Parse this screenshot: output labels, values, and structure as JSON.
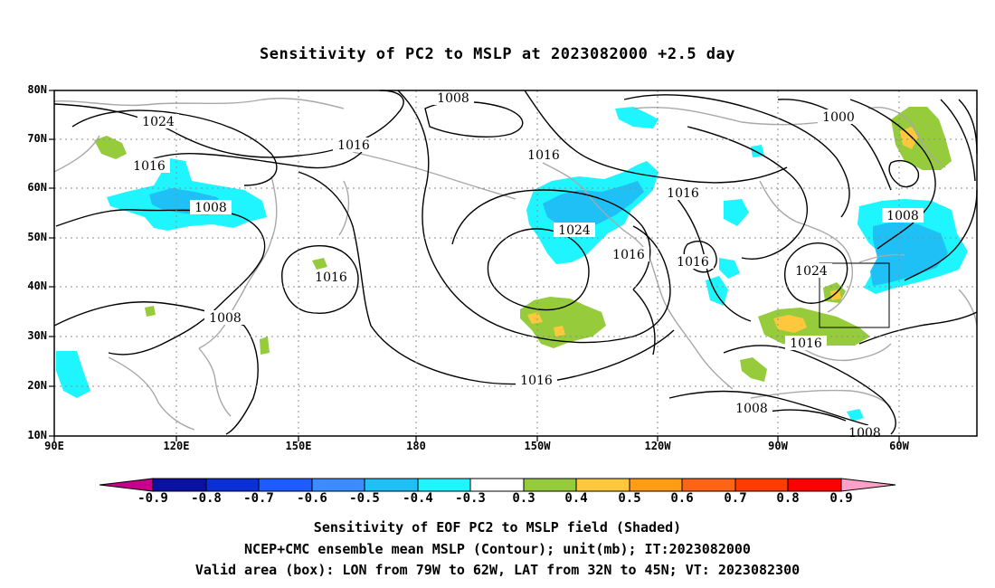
{
  "title": "Sensitivity of PC2 to MSLP at 2023082000 +2.5 day",
  "lat_labels": [
    "80N",
    "70N",
    "60N",
    "50N",
    "40N",
    "30N",
    "20N",
    "10N"
  ],
  "lon_labels": [
    "90E",
    "120E",
    "150E",
    "180",
    "150W",
    "120W",
    "90W",
    "60W"
  ],
  "contour_labels": [
    "1008",
    "1024",
    "1016",
    "1016",
    "1008",
    "1016",
    "1024",
    "1016",
    "1016",
    "1000",
    "1016",
    "1008",
    "1016",
    "1008",
    "1024",
    "1016",
    "1016",
    "1008",
    "1008"
  ],
  "colorbar": {
    "ticks": [
      "-0.9",
      "-0.8",
      "-0.7",
      "-0.6",
      "-0.5",
      "-0.4",
      "-0.3",
      "0.3",
      "0.4",
      "0.5",
      "0.6",
      "0.7",
      "0.8",
      "0.9"
    ],
    "colors": [
      "#c8008c",
      "#0a10a0",
      "#0a2fd6",
      "#1e5cff",
      "#3d8cff",
      "#1ec0f5",
      "#1ef5ff",
      "#ffffff",
      "#96cc3c",
      "#ffc83c",
      "#ff9c14",
      "#ff6414",
      "#ff3c00",
      "#ff0000",
      "#ffa0c8"
    ]
  },
  "captions": {
    "line1": "Sensitivity of EOF PC2 to MSLP field (Shaded)",
    "line2": "NCEP+CMC ensemble mean MSLP (Contour); unit(mb); IT:2023082000",
    "line3": "Valid area (box): LON from 79W to 62W, LAT from 32N to 45N; VT: 2023082300"
  },
  "valid_box": {
    "lon_west": -79,
    "lon_east": -62,
    "lat_south": 32,
    "lat_north": 45
  },
  "map_extent": {
    "lon_min": 90,
    "lon_max": 317,
    "lat_min": 10,
    "lat_max": 80
  }
}
